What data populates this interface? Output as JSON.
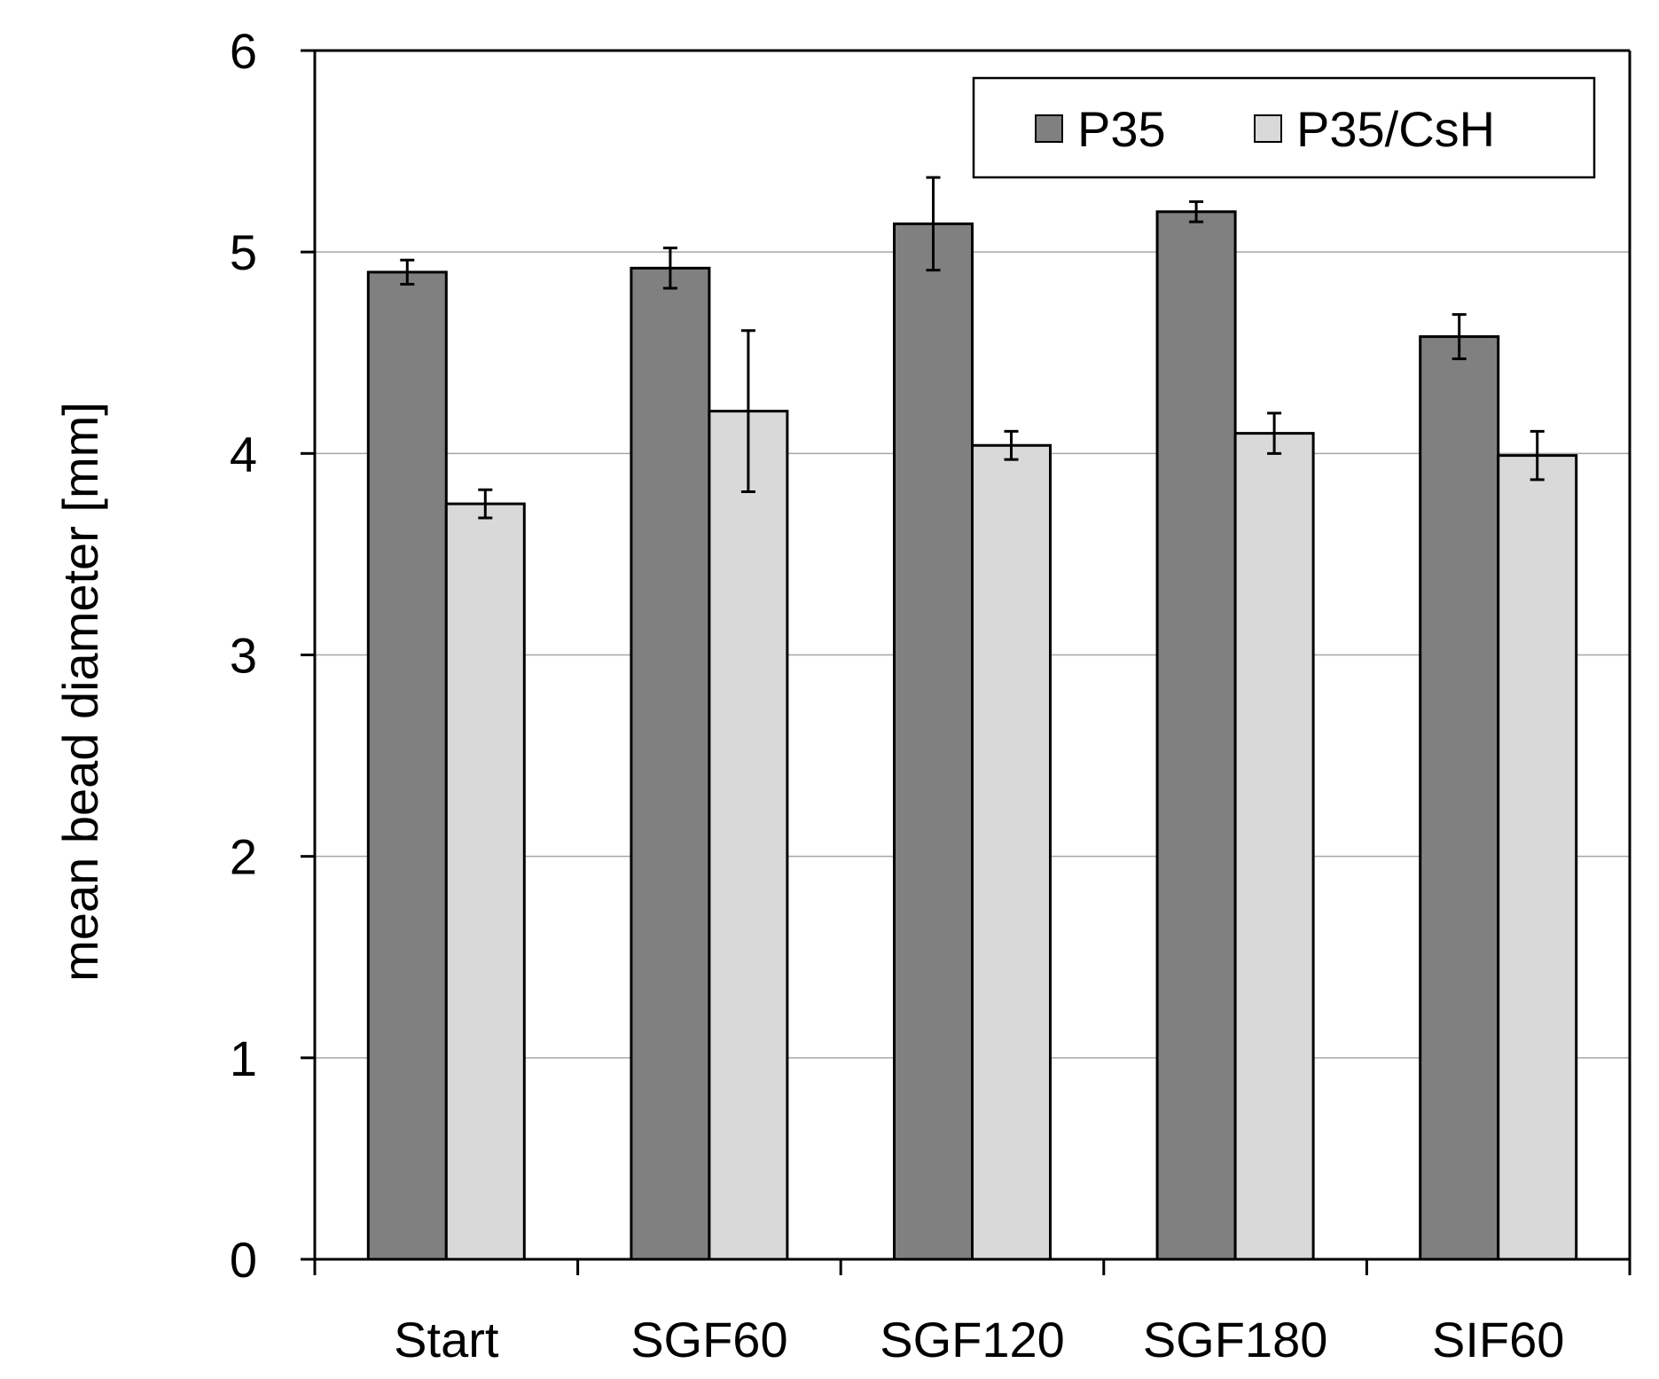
{
  "chart_data": {
    "type": "bar",
    "categories": [
      "Start",
      "SGF60",
      "SGF120",
      "SGF180",
      "SIF60"
    ],
    "series": [
      {
        "name": "P35",
        "values": [
          4.9,
          4.92,
          5.14,
          5.2,
          4.58
        ],
        "errors": [
          0.06,
          0.1,
          0.23,
          0.05,
          0.11
        ],
        "color": "#808080"
      },
      {
        "name": "P35/CsH",
        "values": [
          3.75,
          4.21,
          4.04,
          4.1,
          3.99
        ],
        "errors": [
          0.07,
          0.4,
          0.07,
          0.1,
          0.12
        ],
        "color": "#d9d9d9"
      }
    ],
    "ylabel": "mean bead diameter [mm]",
    "xlabel": "",
    "ylim": [
      0,
      6
    ],
    "yticks": [
      "0",
      "1",
      "2",
      "3",
      "4",
      "5",
      "6"
    ],
    "grid": true,
    "legend_position": "top-right"
  }
}
